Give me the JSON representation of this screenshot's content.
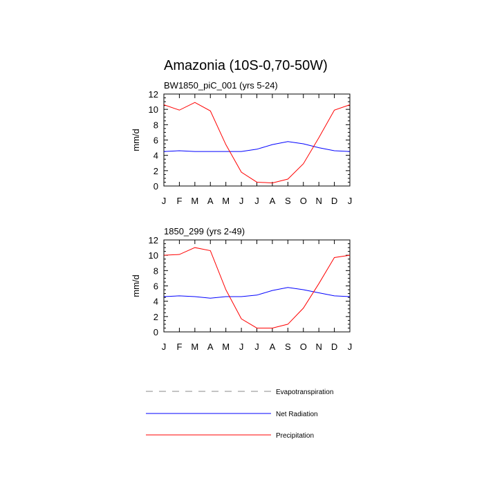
{
  "title": "Amazonia (10S-0,70-50W)",
  "colors": {
    "evapotranspiration": "#888888",
    "net_radiation": "#0000ff",
    "precipitation": "#ff0000"
  },
  "legend": [
    {
      "label": "Evapotranspiration",
      "color": "#888888",
      "style": "dashed"
    },
    {
      "label": "Net Radiation",
      "color": "#0000ff",
      "style": "solid"
    },
    {
      "label": "Precipitation",
      "color": "#ff0000",
      "style": "solid"
    }
  ],
  "chart_data": [
    {
      "type": "line",
      "subtitle": "BW1850_piC_001 (yrs 5-24)",
      "ylabel": "mm/d",
      "categories": [
        "J",
        "F",
        "M",
        "A",
        "M",
        "J",
        "J",
        "A",
        "S",
        "O",
        "N",
        "D",
        "J"
      ],
      "ylim": [
        0,
        12
      ],
      "yticks": [
        0,
        2,
        4,
        6,
        8,
        10,
        12
      ],
      "series": [
        {
          "name": "Net Radiation",
          "color": "#0000ff",
          "values": [
            4.5,
            4.6,
            4.5,
            4.5,
            4.5,
            4.5,
            4.8,
            5.4,
            5.8,
            5.5,
            5.0,
            4.6,
            4.5
          ]
        },
        {
          "name": "Precipitation",
          "color": "#ff0000",
          "values": [
            10.6,
            9.9,
            10.9,
            9.8,
            5.4,
            1.8,
            0.5,
            0.4,
            0.9,
            2.9,
            6.3,
            9.9,
            10.6
          ]
        }
      ]
    },
    {
      "type": "line",
      "subtitle": "1850_299 (yrs 2-49)",
      "ylabel": "mm/d",
      "categories": [
        "J",
        "F",
        "M",
        "A",
        "M",
        "J",
        "J",
        "A",
        "S",
        "O",
        "N",
        "D",
        "J"
      ],
      "ylim": [
        0,
        12
      ],
      "yticks": [
        0,
        2,
        4,
        6,
        8,
        10,
        12
      ],
      "series": [
        {
          "name": "Net Radiation",
          "color": "#0000ff",
          "values": [
            4.6,
            4.7,
            4.6,
            4.4,
            4.6,
            4.6,
            4.8,
            5.4,
            5.8,
            5.5,
            5.1,
            4.7,
            4.6
          ]
        },
        {
          "name": "Precipitation",
          "color": "#ff0000",
          "values": [
            10.0,
            10.1,
            11.0,
            10.6,
            5.5,
            1.7,
            0.5,
            0.5,
            1.0,
            3.1,
            6.3,
            9.7,
            10.0
          ]
        }
      ]
    }
  ]
}
